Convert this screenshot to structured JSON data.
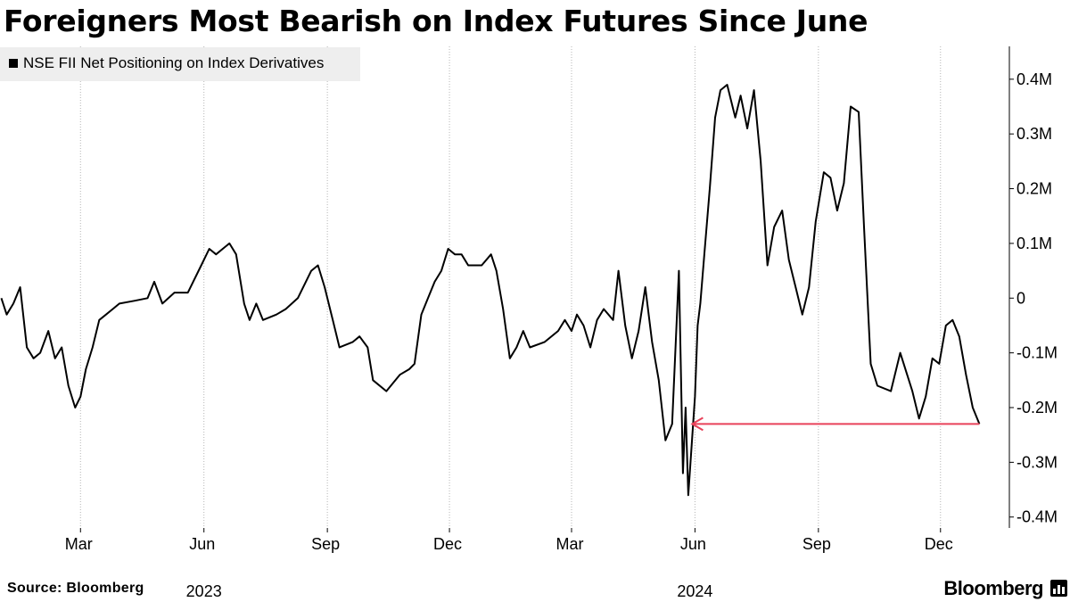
{
  "title": "Foreigners Most Bearish on Index Futures Since June",
  "source": "Source: Bloomberg",
  "brand": "Bloomberg",
  "brand_icon": "bar-chart-icon",
  "chart_data": {
    "type": "line",
    "series": [
      {
        "name": "NSE FII Net Positioning on Index Derivatives",
        "color": "#000000",
        "points": [
          [
            "2023-01-01",
            0
          ],
          [
            "2023-01-05",
            -30000
          ],
          [
            "2023-01-10",
            -10000
          ],
          [
            "2023-01-15",
            20000
          ],
          [
            "2023-01-20",
            -90000
          ],
          [
            "2023-01-25",
            -110000
          ],
          [
            "2023-01-30",
            -100000
          ],
          [
            "2023-02-05",
            -60000
          ],
          [
            "2023-02-10",
            -110000
          ],
          [
            "2023-02-15",
            -90000
          ],
          [
            "2023-02-20",
            -160000
          ],
          [
            "2023-02-25",
            -200000
          ],
          [
            "2023-03-01",
            -180000
          ],
          [
            "2023-03-05",
            -130000
          ],
          [
            "2023-03-10",
            -90000
          ],
          [
            "2023-03-15",
            -40000
          ],
          [
            "2023-03-20",
            -30000
          ],
          [
            "2023-03-30",
            -10000
          ],
          [
            "2023-04-10",
            -5000
          ],
          [
            "2023-04-20",
            0
          ],
          [
            "2023-04-25",
            30000
          ],
          [
            "2023-05-01",
            -10000
          ],
          [
            "2023-05-10",
            10000
          ],
          [
            "2023-05-20",
            10000
          ],
          [
            "2023-05-30",
            60000
          ],
          [
            "2023-06-05",
            90000
          ],
          [
            "2023-06-10",
            80000
          ],
          [
            "2023-06-15",
            90000
          ],
          [
            "2023-06-20",
            100000
          ],
          [
            "2023-06-25",
            80000
          ],
          [
            "2023-07-01",
            -10000
          ],
          [
            "2023-07-05",
            -40000
          ],
          [
            "2023-07-10",
            -10000
          ],
          [
            "2023-07-15",
            -40000
          ],
          [
            "2023-07-25",
            -30000
          ],
          [
            "2023-08-01",
            -20000
          ],
          [
            "2023-08-10",
            0
          ],
          [
            "2023-08-20",
            50000
          ],
          [
            "2023-08-25",
            60000
          ],
          [
            "2023-08-30",
            20000
          ],
          [
            "2023-09-05",
            -40000
          ],
          [
            "2023-09-10",
            -90000
          ],
          [
            "2023-09-20",
            -80000
          ],
          [
            "2023-09-25",
            -70000
          ],
          [
            "2023-10-01",
            -90000
          ],
          [
            "2023-10-05",
            -150000
          ],
          [
            "2023-10-15",
            -170000
          ],
          [
            "2023-10-25",
            -140000
          ],
          [
            "2023-11-01",
            -130000
          ],
          [
            "2023-11-05",
            -120000
          ],
          [
            "2023-11-10",
            -30000
          ],
          [
            "2023-11-15",
            0
          ],
          [
            "2023-11-20",
            30000
          ],
          [
            "2023-11-25",
            50000
          ],
          [
            "2023-11-30",
            90000
          ],
          [
            "2023-12-05",
            80000
          ],
          [
            "2023-12-10",
            80000
          ],
          [
            "2023-12-15",
            60000
          ],
          [
            "2023-12-25",
            60000
          ],
          [
            "2024-01-01",
            80000
          ],
          [
            "2024-01-05",
            50000
          ],
          [
            "2024-01-10",
            -20000
          ],
          [
            "2024-01-15",
            -110000
          ],
          [
            "2024-01-20",
            -90000
          ],
          [
            "2024-01-25",
            -60000
          ],
          [
            "2024-01-30",
            -90000
          ],
          [
            "2024-02-10",
            -80000
          ],
          [
            "2024-02-20",
            -60000
          ],
          [
            "2024-02-25",
            -40000
          ],
          [
            "2024-03-01",
            -60000
          ],
          [
            "2024-03-05",
            -30000
          ],
          [
            "2024-03-10",
            -50000
          ],
          [
            "2024-03-15",
            -90000
          ],
          [
            "2024-03-20",
            -40000
          ],
          [
            "2024-03-25",
            -20000
          ],
          [
            "2024-04-01",
            -40000
          ],
          [
            "2024-04-05",
            50000
          ],
          [
            "2024-04-10",
            -50000
          ],
          [
            "2024-04-15",
            -110000
          ],
          [
            "2024-04-20",
            -60000
          ],
          [
            "2024-04-25",
            20000
          ],
          [
            "2024-04-30",
            -80000
          ],
          [
            "2024-05-05",
            -150000
          ],
          [
            "2024-05-10",
            -260000
          ],
          [
            "2024-05-15",
            -230000
          ],
          [
            "2024-05-20",
            50000
          ],
          [
            "2024-05-23",
            -320000
          ],
          [
            "2024-05-25",
            -200000
          ],
          [
            "2024-05-27",
            -360000
          ],
          [
            "2024-06-01",
            -180000
          ],
          [
            "2024-06-03",
            -50000
          ],
          [
            "2024-06-05",
            -10000
          ],
          [
            "2024-06-08",
            80000
          ],
          [
            "2024-06-12",
            200000
          ],
          [
            "2024-06-16",
            330000
          ],
          [
            "2024-06-20",
            380000
          ],
          [
            "2024-06-25",
            390000
          ],
          [
            "2024-07-01",
            330000
          ],
          [
            "2024-07-05",
            370000
          ],
          [
            "2024-07-10",
            310000
          ],
          [
            "2024-07-15",
            380000
          ],
          [
            "2024-07-20",
            250000
          ],
          [
            "2024-07-25",
            60000
          ],
          [
            "2024-07-30",
            130000
          ],
          [
            "2024-08-05",
            160000
          ],
          [
            "2024-08-10",
            70000
          ],
          [
            "2024-08-15",
            20000
          ],
          [
            "2024-08-20",
            -30000
          ],
          [
            "2024-08-25",
            20000
          ],
          [
            "2024-08-30",
            140000
          ],
          [
            "2024-09-05",
            230000
          ],
          [
            "2024-09-10",
            220000
          ],
          [
            "2024-09-15",
            160000
          ],
          [
            "2024-09-20",
            210000
          ],
          [
            "2024-09-25",
            350000
          ],
          [
            "2024-10-01",
            340000
          ],
          [
            "2024-10-05",
            130000
          ],
          [
            "2024-10-10",
            -120000
          ],
          [
            "2024-10-15",
            -160000
          ],
          [
            "2024-10-25",
            -170000
          ],
          [
            "2024-11-01",
            -100000
          ],
          [
            "2024-11-10",
            -170000
          ],
          [
            "2024-11-15",
            -220000
          ],
          [
            "2024-11-20",
            -180000
          ],
          [
            "2024-11-25",
            -110000
          ],
          [
            "2024-11-30",
            -120000
          ],
          [
            "2024-12-05",
            -50000
          ],
          [
            "2024-12-10",
            -40000
          ],
          [
            "2024-12-15",
            -70000
          ],
          [
            "2024-12-20",
            -140000
          ],
          [
            "2024-12-25",
            -200000
          ],
          [
            "2024-12-30",
            -230000
          ]
        ]
      }
    ],
    "annotation": {
      "type": "arrow",
      "color": "#e8425a",
      "from_date": "2024-12-30",
      "to_date": "2024-05-30",
      "value": -230000
    },
    "title": "Foreigners Most Bearish on Index Futures Since June",
    "x_ticks": [
      {
        "label": "Mar",
        "date": "2023-03-01"
      },
      {
        "label": "Jun",
        "date": "2023-06-01"
      },
      {
        "label": "Sep",
        "date": "2023-09-01"
      },
      {
        "label": "Dec",
        "date": "2023-12-01"
      },
      {
        "label": "Mar",
        "date": "2024-03-01"
      },
      {
        "label": "Jun",
        "date": "2024-06-01"
      },
      {
        "label": "Sep",
        "date": "2024-09-01"
      },
      {
        "label": "Dec",
        "date": "2024-12-01"
      }
    ],
    "x_year_labels": [
      {
        "label": "2023",
        "date": "2023-06-01"
      },
      {
        "label": "2024",
        "date": "2024-06-01"
      }
    ],
    "xlim": [
      "2022-12-31",
      "2025-01-20"
    ],
    "y_ticks": [
      {
        "label": "0.4M",
        "value": 400000
      },
      {
        "label": "0.3M",
        "value": 300000
      },
      {
        "label": "0.2M",
        "value": 200000
      },
      {
        "label": "0.1M",
        "value": 100000
      },
      {
        "label": "0",
        "value": 0
      },
      {
        "label": "-0.1M",
        "value": -100000
      },
      {
        "label": "-0.2M",
        "value": -200000
      },
      {
        "label": "-0.3M",
        "value": -300000
      },
      {
        "label": "-0.4M",
        "value": -400000
      }
    ],
    "ylim": [
      -420000,
      460000
    ],
    "y_axis_side": "right",
    "grid": "vertical-dotted",
    "legend_position": "top-left",
    "xlabel": "",
    "ylabel": ""
  }
}
